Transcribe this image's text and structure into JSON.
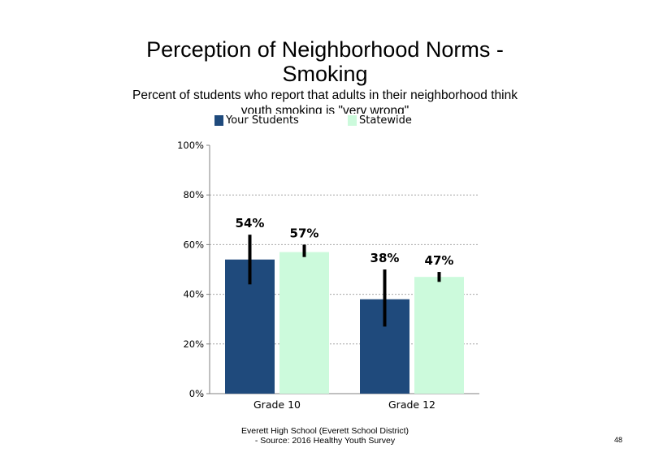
{
  "slide": {
    "title_line1": "Perception of Neighborhood Norms -",
    "title_line2": "Smoking",
    "subtitle": "Percent of students who report that adults in their neighborhood think youth smoking is \"very wrong\"",
    "footer_line1": "Everett High School (Everett School District)",
    "footer_line2": "- Source: 2016 Healthy Youth Survey",
    "page_number": "48"
  },
  "chart_data": {
    "type": "bar",
    "title": "Perception of Neighborhood Norms - Smoking",
    "subtitle": "Percent of students who report that adults in their neighborhood think youth smoking is \"very wrong\"",
    "categories": [
      "Grade 10",
      "Grade 12"
    ],
    "series": [
      {
        "name": "Your Students",
        "color": "#1f4a7c",
        "values": [
          54,
          38
        ],
        "data_labels": [
          "54%",
          "38%"
        ],
        "error_low": [
          44,
          27
        ],
        "error_high": [
          64,
          50
        ]
      },
      {
        "name": "Statewide",
        "color": "#ccfadc",
        "values": [
          57,
          47
        ],
        "data_labels": [
          "57%",
          "47%"
        ],
        "error_low": [
          55,
          45
        ],
        "error_high": [
          60,
          49
        ]
      }
    ],
    "ylim": [
      0,
      100
    ],
    "yticks": [
      0,
      20,
      40,
      60,
      80,
      100
    ],
    "ytick_labels": [
      "0%",
      "20%",
      "40%",
      "60%",
      "80%",
      "100%"
    ],
    "gridlines": "dotted horizontal",
    "legend_position": "top"
  }
}
